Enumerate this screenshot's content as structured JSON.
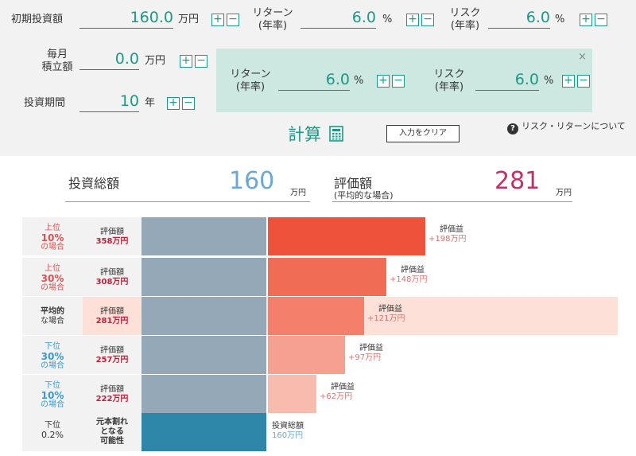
{
  "inputs": {
    "initial": {
      "label": "初期投資額",
      "value": "160.0",
      "unit": "万円"
    },
    "monthly": {
      "label1": "毎月",
      "label2": "積立額",
      "value": "0.0",
      "unit": "万円"
    },
    "period": {
      "label": "投資期間",
      "value": "10",
      "unit": "年"
    },
    "return_top": {
      "label1": "リターン",
      "label2": "(年率)",
      "value": "6.0",
      "unit": "%"
    },
    "risk_top": {
      "label1": "リスク",
      "label2": "(年率)",
      "value": "6.0",
      "unit": "%"
    },
    "return_panel": {
      "label1": "リターン",
      "label2": "(年率)",
      "value": "6.0",
      "unit": "%"
    },
    "risk_panel": {
      "label1": "リスク",
      "label2": "(年率)",
      "value": "6.0",
      "unit": "%"
    },
    "plus": "+",
    "minus": "−"
  },
  "panel_close": "×",
  "calc_label": "計算",
  "calc_icon": "calculator-icon",
  "clear_label": "入力をクリア",
  "help_icon": "?",
  "help_text": "リスク・リターンについて",
  "summary": {
    "invest_label": "投資総額",
    "invest_value": "160",
    "invest_unit": "万円",
    "eval_label": "評価額",
    "eval_sub": "(平均的な場合)",
    "eval_value": "281",
    "eval_unit": "万円"
  },
  "colors": {
    "accent": "#1a9a87",
    "invest_blue": "#6aa8d8",
    "eval_pink": "#c0306a",
    "base_bar": "#94a8b8",
    "loss_bar": "#2e86a8"
  },
  "rows": [
    {
      "l1": "上位",
      "l2": "10%",
      "l3": "の場合",
      "lcolor": "#e05050",
      "eval_label": "評価額",
      "eval_value": "358万円",
      "gain_label": "評価益",
      "gain_value": "+198万円",
      "gain_fraction": 1.0,
      "bar_color": "#ef523a"
    },
    {
      "l1": "上位",
      "l2": "30%",
      "l3": "の場合",
      "lcolor": "#e05050",
      "eval_label": "評価額",
      "eval_value": "308万円",
      "gain_label": "評価益",
      "gain_value": "+148万円",
      "gain_fraction": 0.75,
      "bar_color": "#f06c55"
    },
    {
      "l1": "平均的",
      "l2": "な場合",
      "l3": "",
      "lcolor": "#333333",
      "eval_label": "評価額",
      "eval_value": "281万円",
      "gain_label": "評価益",
      "gain_value": "+121万円",
      "gain_fraction": 0.61,
      "bar_color": "#f4806b"
    },
    {
      "l1": "下位",
      "l2": "30%",
      "l3": "の場合",
      "lcolor": "#3a9acd",
      "eval_label": "評価額",
      "eval_value": "257万円",
      "gain_label": "評価益",
      "gain_value": "+97万円",
      "gain_fraction": 0.49,
      "bar_color": "#f6a08f"
    },
    {
      "l1": "下位",
      "l2": "10%",
      "l3": "の場合",
      "lcolor": "#3a9acd",
      "eval_label": "評価額",
      "eval_value": "222万円",
      "gain_label": "評価益",
      "gain_value": "+62万円",
      "gain_fraction": 0.31,
      "bar_color": "#f8bcaf"
    }
  ],
  "loss_row": {
    "l1": "下位",
    "l2": "0.2%",
    "text1": "元本割れ",
    "text2": "となる",
    "text3": "可能性",
    "label": "投資総額",
    "value": "160万円"
  }
}
